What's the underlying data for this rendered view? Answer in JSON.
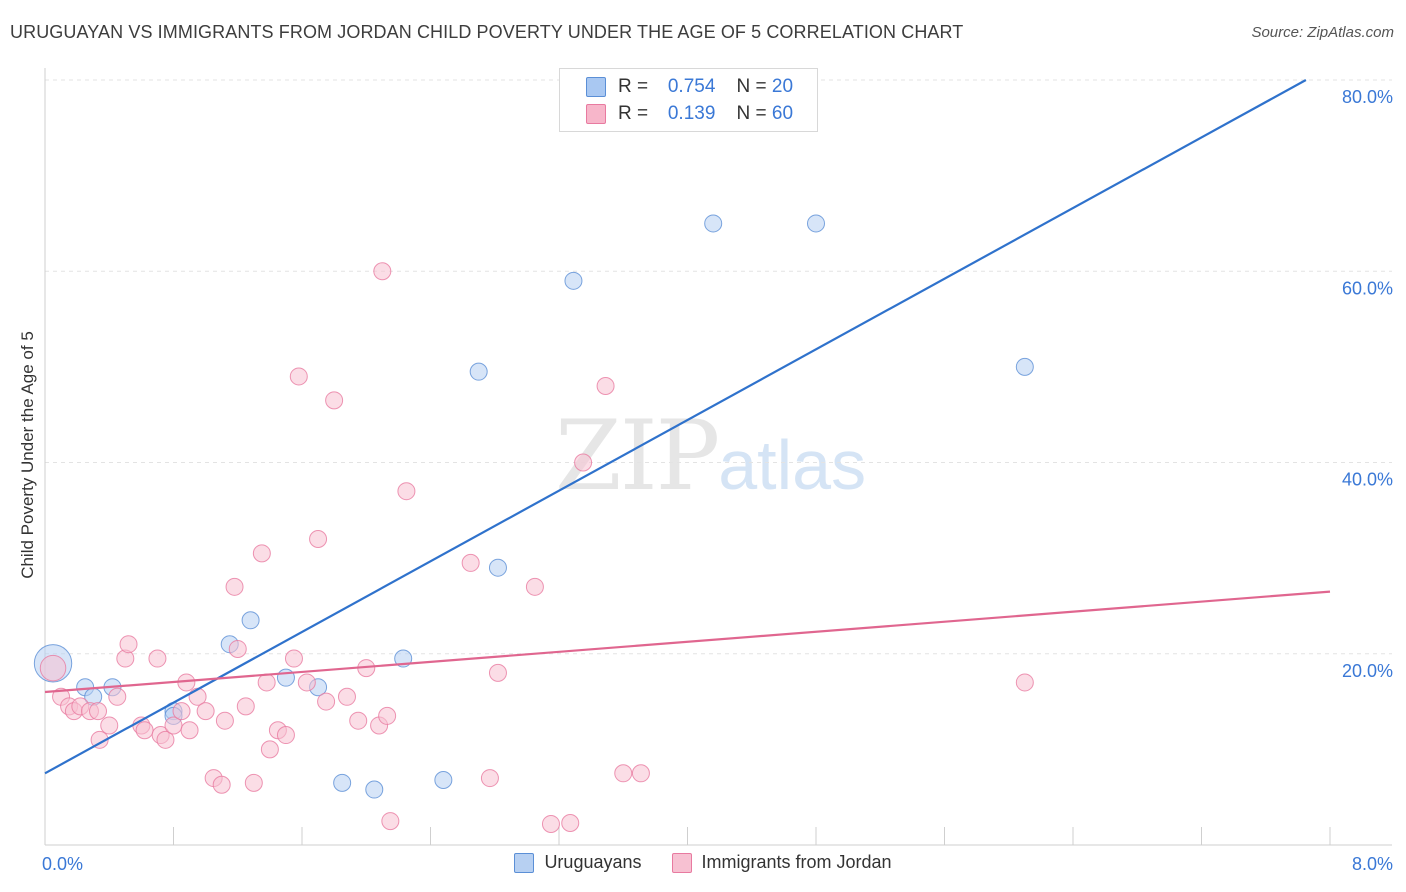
{
  "title": "URUGUAYAN VS IMMIGRANTS FROM JORDAN CHILD POVERTY UNDER THE AGE OF 5 CORRELATION CHART",
  "source": "Source: ZipAtlas.com",
  "watermark": {
    "zip": "ZIP",
    "atlas": "atlas"
  },
  "legend_top": [
    {
      "r_label": "R =",
      "r_value": "0.754",
      "n_label": "N =",
      "n_value": "20",
      "color": "#a9c8f2"
    },
    {
      "r_label": "R =",
      "r_value": "0.139",
      "n_label": "N =",
      "n_value": "60",
      "color": "#f7b6ca"
    }
  ],
  "chart_data": {
    "type": "scatter",
    "title": "URUGUAYAN VS IMMIGRANTS FROM JORDAN CHILD POVERTY UNDER THE AGE OF 5 CORRELATION CHART",
    "xlabel": "",
    "ylabel": "Child Poverty Under the Age of 5",
    "xlim": [
      0,
      8
    ],
    "ylim": [
      0,
      80
    ],
    "x_tick_labels": [
      "0.0%",
      "8.0%"
    ],
    "y_ticks": [
      20,
      40,
      60,
      80
    ],
    "y_tick_labels": [
      "20.0%",
      "40.0%",
      "60.0%",
      "80.0%"
    ],
    "grid": true,
    "legend_position": "bottom",
    "series": [
      {
        "name": "Uruguayans",
        "color": "#5b8fd6",
        "fill": "#b7d0f2",
        "points": [
          [
            0.05,
            19.0,
            2.2
          ],
          [
            0.25,
            16.5,
            1
          ],
          [
            0.42,
            16.5,
            1
          ],
          [
            0.3,
            15.5,
            1
          ],
          [
            0.8,
            14.0,
            1
          ],
          [
            0.8,
            13.5,
            1
          ],
          [
            1.15,
            21.0,
            1
          ],
          [
            1.28,
            23.5,
            1
          ],
          [
            1.5,
            17.5,
            1
          ],
          [
            1.7,
            16.5,
            1
          ],
          [
            1.85,
            6.5,
            1
          ],
          [
            2.05,
            5.8,
            1
          ],
          [
            2.23,
            19.5,
            1
          ],
          [
            2.48,
            6.8,
            1
          ],
          [
            2.7,
            49.5,
            1
          ],
          [
            2.82,
            29.0,
            1
          ],
          [
            3.29,
            59.0,
            1
          ],
          [
            4.16,
            65.0,
            1
          ],
          [
            4.8,
            65.0,
            1
          ],
          [
            6.1,
            50.0,
            1
          ]
        ],
        "trend": {
          "x": [
            0.0,
            7.85
          ],
          "y": [
            7.5,
            80.0
          ]
        }
      },
      {
        "name": "Immigrants from Jordan",
        "color": "#e87aa0",
        "fill": "#f7c1d2",
        "points": [
          [
            0.05,
            18.5,
            1.5
          ],
          [
            0.1,
            15.5,
            1
          ],
          [
            0.15,
            14.5,
            1
          ],
          [
            0.18,
            14.0,
            1
          ],
          [
            0.22,
            14.5,
            1
          ],
          [
            0.28,
            14.0,
            1
          ],
          [
            0.34,
            11.0,
            1
          ],
          [
            0.4,
            12.5,
            1
          ],
          [
            0.45,
            15.5,
            1
          ],
          [
            0.5,
            19.5,
            1
          ],
          [
            0.52,
            21.0,
            1
          ],
          [
            0.6,
            12.5,
            1
          ],
          [
            0.62,
            12.0,
            1
          ],
          [
            0.7,
            19.5,
            1
          ],
          [
            0.72,
            11.5,
            1
          ],
          [
            0.75,
            11.0,
            1
          ],
          [
            0.8,
            12.5,
            1
          ],
          [
            0.85,
            14.0,
            1
          ],
          [
            0.88,
            17.0,
            1
          ],
          [
            0.9,
            12.0,
            1
          ],
          [
            0.95,
            15.5,
            1
          ],
          [
            1.0,
            14.0,
            1
          ],
          [
            1.05,
            7.0,
            1
          ],
          [
            1.1,
            6.3,
            1
          ],
          [
            1.12,
            13.0,
            1
          ],
          [
            1.18,
            27.0,
            1
          ],
          [
            1.2,
            20.5,
            1
          ],
          [
            1.25,
            14.5,
            1
          ],
          [
            1.3,
            6.5,
            1
          ],
          [
            1.38,
            17.0,
            1
          ],
          [
            1.35,
            30.5,
            1
          ],
          [
            1.4,
            10.0,
            1
          ],
          [
            1.45,
            12.0,
            1
          ],
          [
            1.5,
            11.5,
            1
          ],
          [
            1.55,
            19.5,
            1
          ],
          [
            1.58,
            49.0,
            1
          ],
          [
            1.63,
            17.0,
            1
          ],
          [
            1.7,
            32.0,
            1
          ],
          [
            1.75,
            15.0,
            1
          ],
          [
            1.8,
            46.5,
            1
          ],
          [
            1.88,
            15.5,
            1
          ],
          [
            1.95,
            13.0,
            1
          ],
          [
            2.0,
            18.5,
            1
          ],
          [
            2.08,
            12.5,
            1
          ],
          [
            2.1,
            60.0,
            1
          ],
          [
            2.13,
            13.5,
            1
          ],
          [
            2.15,
            2.5,
            1
          ],
          [
            2.25,
            37.0,
            1
          ],
          [
            2.65,
            29.5,
            1
          ],
          [
            2.77,
            7.0,
            1
          ],
          [
            2.82,
            18.0,
            1
          ],
          [
            3.05,
            27.0,
            1
          ],
          [
            3.15,
            2.2,
            1
          ],
          [
            3.27,
            2.3,
            1
          ],
          [
            3.35,
            40.0,
            1
          ],
          [
            3.49,
            48.0,
            1
          ],
          [
            3.6,
            7.5,
            1
          ],
          [
            3.71,
            7.5,
            1
          ],
          [
            6.1,
            17.0,
            1
          ],
          [
            0.33,
            14.0,
            1
          ]
        ],
        "trend": {
          "x": [
            0.0,
            8.0
          ],
          "y": [
            16.0,
            26.5
          ]
        }
      }
    ]
  },
  "bottom_legend": [
    {
      "label": "Uruguayans",
      "color": "#b7d0f2",
      "border": "#5b8fd6"
    },
    {
      "label": "Immigrants from Jordan",
      "color": "#f7c1d2",
      "border": "#e87aa0"
    }
  ]
}
